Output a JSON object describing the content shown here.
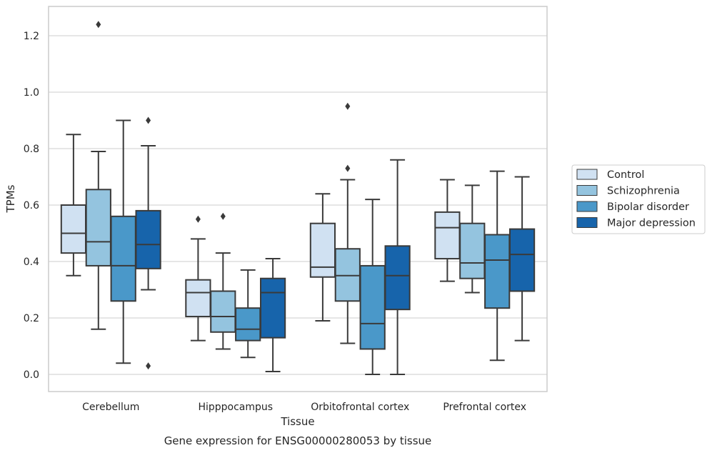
{
  "chart_data": {
    "type": "box",
    "caption": "Gene expression for ENSG00000280053 by tissue",
    "xlabel": "Tissue",
    "ylabel": "TPMs",
    "ylim": [
      -0.06,
      1.31
    ],
    "yticks": [
      "0.0",
      "0.2",
      "0.4",
      "0.6",
      "0.8",
      "1.0",
      "1.2"
    ],
    "ytick_values": [
      0,
      0.2,
      0.4,
      0.6,
      0.8,
      1.0,
      1.2
    ],
    "grid": true,
    "legend_position": "right",
    "categories": [
      "Cerebellum",
      "Hipppocampus",
      "Orbitofrontal cortex",
      "Prefrontal cortex"
    ],
    "series": [
      {
        "name": "Control",
        "color": "#d0e1f2",
        "boxes": [
          {
            "whislo": 0.35,
            "q1": 0.43,
            "med": 0.5,
            "q3": 0.6,
            "whishi": 0.85,
            "fliers": []
          },
          {
            "whislo": 0.12,
            "q1": 0.205,
            "med": 0.29,
            "q3": 0.335,
            "whishi": 0.48,
            "fliers": [
              0.55
            ]
          },
          {
            "whislo": 0.19,
            "q1": 0.345,
            "med": 0.38,
            "q3": 0.535,
            "whishi": 0.64,
            "fliers": []
          },
          {
            "whislo": 0.33,
            "q1": 0.41,
            "med": 0.52,
            "q3": 0.575,
            "whishi": 0.69,
            "fliers": []
          }
        ]
      },
      {
        "name": "Schizophrenia",
        "color": "#94c4df",
        "boxes": [
          {
            "whislo": 0.16,
            "q1": 0.385,
            "med": 0.47,
            "q3": 0.655,
            "whishi": 0.79,
            "fliers": [
              1.24
            ]
          },
          {
            "whislo": 0.09,
            "q1": 0.15,
            "med": 0.205,
            "q3": 0.295,
            "whishi": 0.43,
            "fliers": [
              0.56
            ]
          },
          {
            "whislo": 0.11,
            "q1": 0.26,
            "med": 0.35,
            "q3": 0.445,
            "whishi": 0.69,
            "fliers": [
              0.73,
              0.95
            ]
          },
          {
            "whislo": 0.29,
            "q1": 0.34,
            "med": 0.395,
            "q3": 0.535,
            "whishi": 0.67,
            "fliers": []
          }
        ]
      },
      {
        "name": "Bipolar disorder",
        "color": "#4a98c9",
        "boxes": [
          {
            "whislo": 0.04,
            "q1": 0.26,
            "med": 0.385,
            "q3": 0.56,
            "whishi": 0.9,
            "fliers": []
          },
          {
            "whislo": 0.06,
            "q1": 0.12,
            "med": 0.16,
            "q3": 0.235,
            "whishi": 0.37,
            "fliers": []
          },
          {
            "whislo": 0.0,
            "q1": 0.09,
            "med": 0.18,
            "q3": 0.385,
            "whishi": 0.62,
            "fliers": []
          },
          {
            "whislo": 0.05,
            "q1": 0.235,
            "med": 0.405,
            "q3": 0.495,
            "whishi": 0.72,
            "fliers": []
          }
        ]
      },
      {
        "name": "Major depression",
        "color": "#1764ab",
        "boxes": [
          {
            "whislo": 0.3,
            "q1": 0.375,
            "med": 0.46,
            "q3": 0.58,
            "whishi": 0.81,
            "fliers": [
              0.9,
              0.03
            ]
          },
          {
            "whislo": 0.01,
            "q1": 0.13,
            "med": 0.29,
            "q3": 0.34,
            "whishi": 0.41,
            "fliers": []
          },
          {
            "whislo": 0.0,
            "q1": 0.23,
            "med": 0.35,
            "q3": 0.455,
            "whishi": 0.76,
            "fliers": []
          },
          {
            "whislo": 0.12,
            "q1": 0.295,
            "med": 0.425,
            "q3": 0.515,
            "whishi": 0.7,
            "fliers": []
          }
        ]
      }
    ],
    "colors": {
      "grid": "#cccccc",
      "frame": "#cccccc",
      "edge": "#3a3a3a",
      "legend_border": "#cccccc"
    }
  }
}
